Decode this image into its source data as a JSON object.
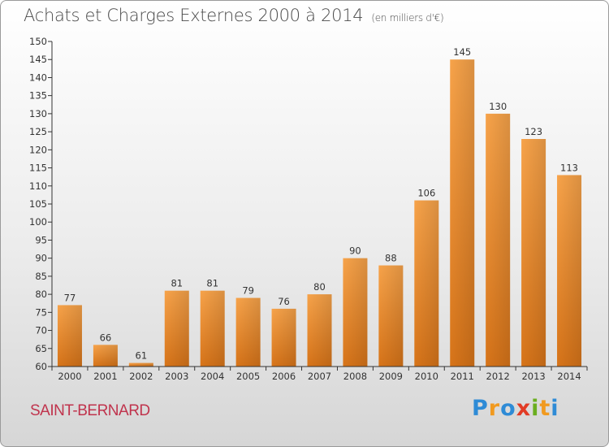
{
  "header": {
    "title": "Achats et Charges Externes 2000 à 2014",
    "unit": "(en milliers d'€)"
  },
  "footer": {
    "commune": "SAINT-BERNARD",
    "logo_letters": [
      "P",
      "r",
      "o",
      "x",
      "i",
      "t",
      "i"
    ],
    "logo_colors": [
      "#2e8bd6",
      "#f19a1f",
      "#2e8bd6",
      "#e23b25",
      "#6aae1f",
      "#f19a1f",
      "#2e8bd6"
    ]
  },
  "colors": {
    "bar_light": "#f7a34a",
    "bar_dark": "#d77419",
    "title": "#4a4a4a",
    "commune": "#c0344d"
  },
  "chart_data": {
    "type": "bar",
    "title": "Achats et Charges Externes 2000 à 2014",
    "subtitle": "(en milliers d'€)",
    "categories": [
      "2000",
      "2001",
      "2002",
      "2003",
      "2004",
      "2005",
      "2006",
      "2007",
      "2008",
      "2009",
      "2010",
      "2011",
      "2012",
      "2013",
      "2014"
    ],
    "values": [
      77,
      66,
      61,
      81,
      81,
      79,
      76,
      80,
      90,
      88,
      106,
      145,
      130,
      123,
      113
    ],
    "ylim": [
      60,
      150
    ],
    "yticks": [
      60,
      65,
      70,
      75,
      80,
      85,
      90,
      95,
      100,
      105,
      110,
      115,
      120,
      125,
      130,
      135,
      140,
      145,
      150
    ],
    "grid": false,
    "legend": "none"
  }
}
